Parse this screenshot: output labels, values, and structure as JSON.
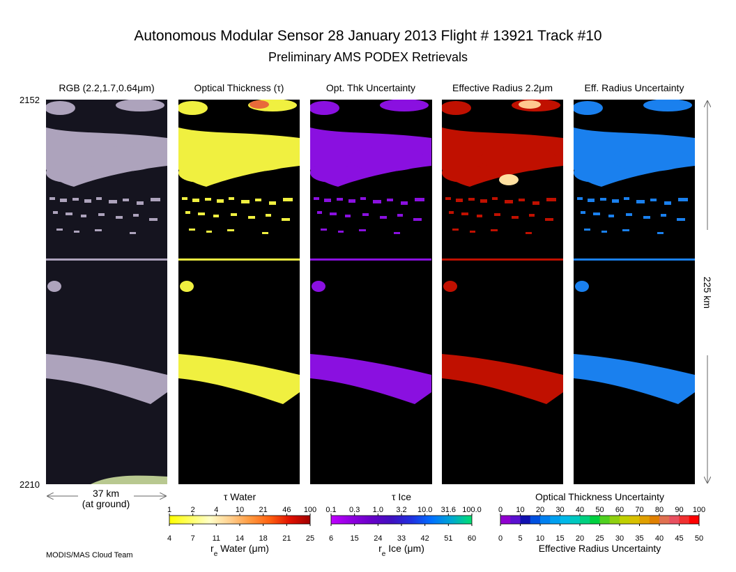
{
  "header": {
    "title": "Autonomous Modular Sensor  28 January 2013  Flight # 13921 Track #10",
    "subtitle": "Preliminary AMS PODEX Retrievals"
  },
  "panels": [
    "RGB (2.2,1.7,0.64μm)",
    "Optical Thickness (τ)",
    "Opt. Thk Uncertainty",
    "Effective Radius 2.2μm",
    "Eff. Radius Uncertainty"
  ],
  "scan": {
    "start": "2152",
    "end": "2210"
  },
  "scale": {
    "width": "37 km",
    "width_note": "(at ground)",
    "length": "225 km"
  },
  "colorbars": [
    {
      "top_title": "τ Water",
      "top_ticks": [
        "1",
        "2",
        "4",
        "10",
        "21",
        "46",
        "100"
      ],
      "bottom_ticks": [
        "4",
        "7",
        "11",
        "14",
        "18",
        "21",
        "25"
      ],
      "bottom_title": {
        "symbol": "r",
        "subscript": "e",
        "text": " Water (μm)"
      }
    },
    {
      "top_title": "τ Ice",
      "top_ticks": [
        "0.1",
        "0.3",
        "1.0",
        "3.2",
        "10.0",
        "31.6",
        "100.0"
      ],
      "bottom_ticks": [
        "6",
        "15",
        "24",
        "33",
        "42",
        "51",
        "60"
      ],
      "bottom_title": {
        "symbol": "r",
        "subscript": "e",
        "text": " Ice (μm)"
      }
    },
    {
      "top_title": "Optical Thickness Uncertainty",
      "top_ticks": [
        "0",
        "10",
        "20",
        "30",
        "40",
        "50",
        "60",
        "70",
        "80",
        "90",
        "100"
      ],
      "bottom_ticks": [
        "0",
        "5",
        "10",
        "15",
        "20",
        "25",
        "30",
        "35",
        "40",
        "45",
        "50"
      ],
      "bottom_title": {
        "text": "Effective Radius Uncertainty"
      }
    }
  ],
  "footer": "MODIS/MAS Cloud Team"
}
